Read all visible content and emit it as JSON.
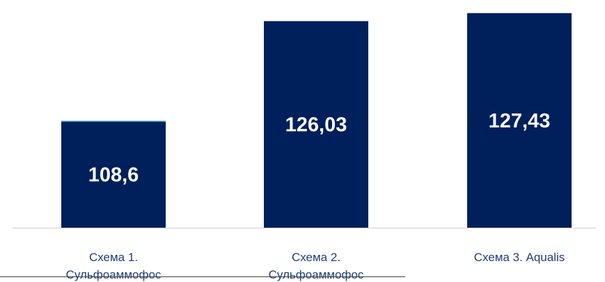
{
  "chart_data": {
    "type": "bar",
    "categories": [
      [
        "Схема 1.",
        "Сульфоаммофос"
      ],
      [
        "Схема 2.",
        "Сульфоаммофос"
      ],
      [
        "Схема 3. Aqualis"
      ]
    ],
    "values": [
      108.6,
      126.03,
      127.43
    ],
    "value_labels": [
      "108,6",
      "126,03",
      "127,43"
    ],
    "ylim": [
      90,
      128.5
    ],
    "grid": false,
    "legend": "none",
    "colors": {
      "bar": "#00205b",
      "bar_top_edge": "#2a8fd0",
      "label_text": "#1f3d7a",
      "value_text": "#ffffff",
      "axis": "#d0d0d0",
      "bottom_rule": "#404040"
    }
  }
}
